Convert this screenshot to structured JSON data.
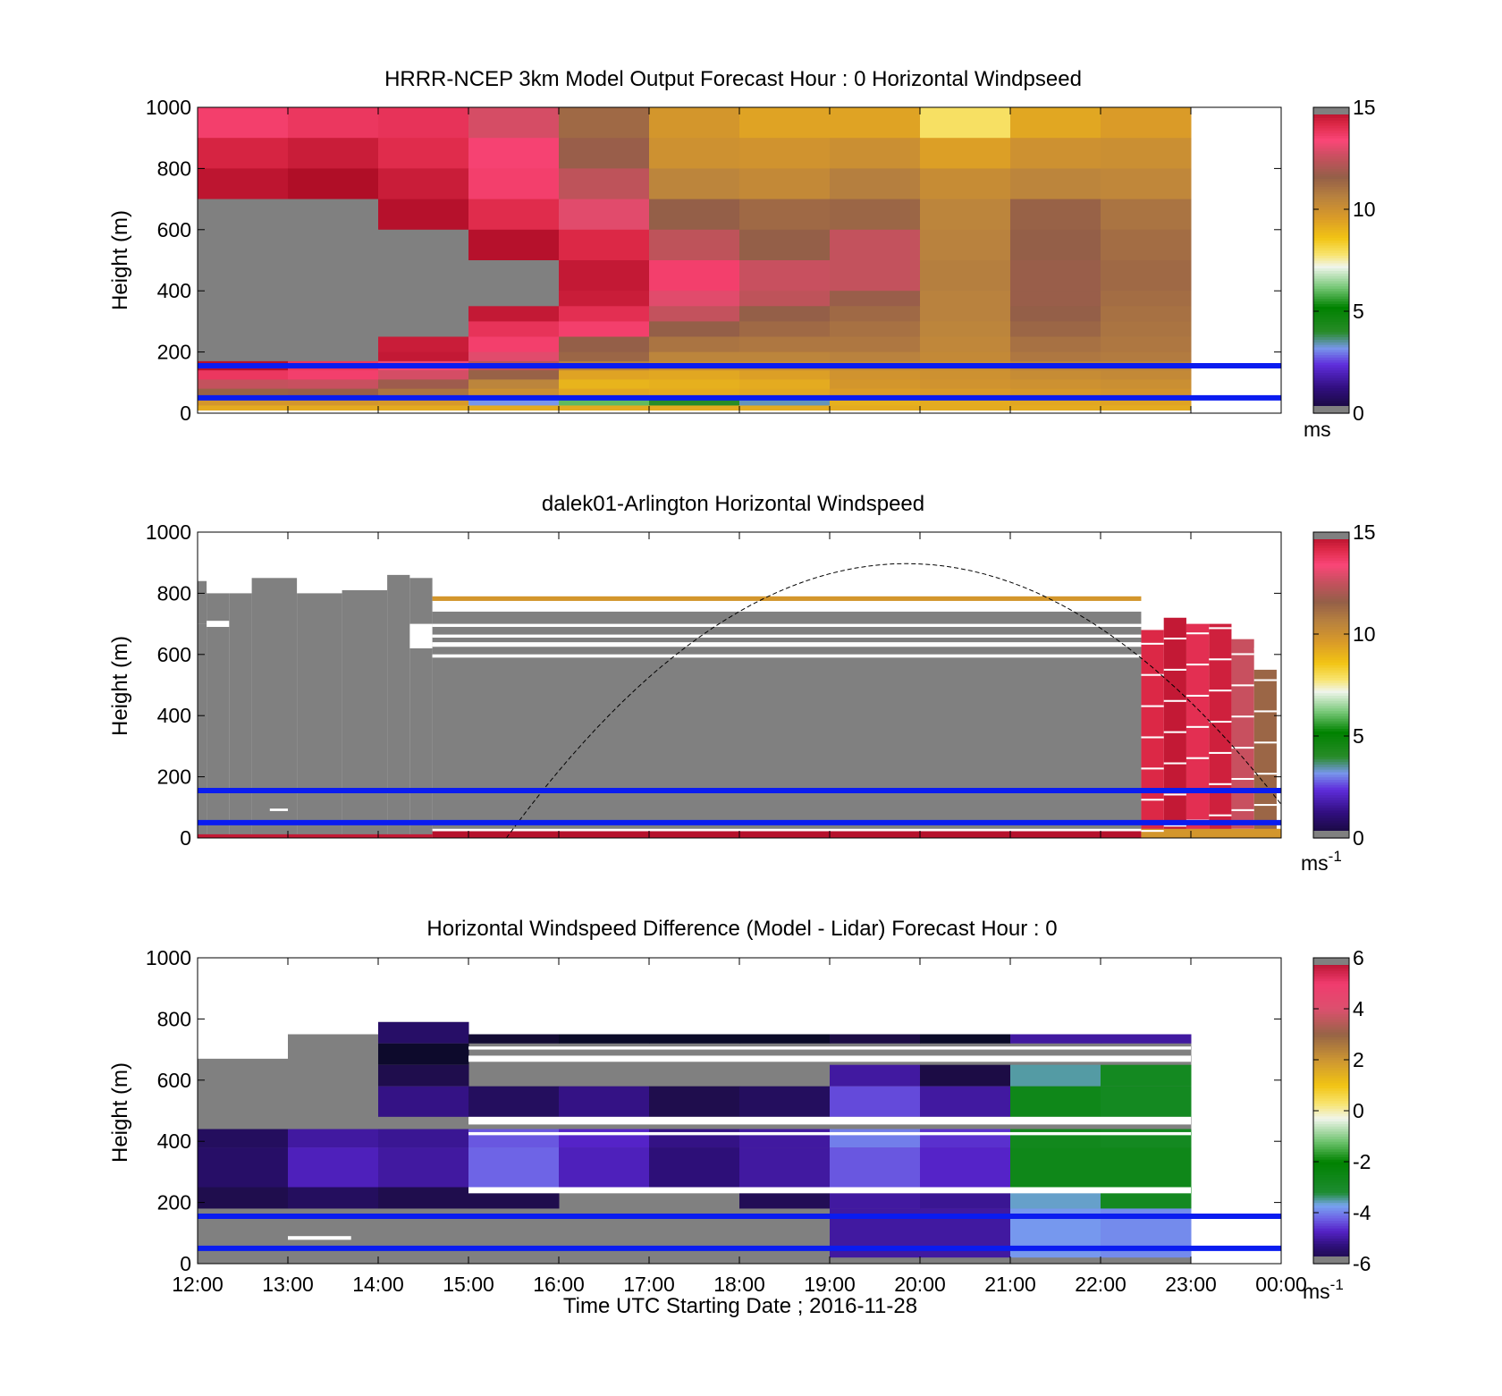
{
  "chart_data": [
    {
      "type": "heatmap",
      "title": "HRRR-NCEP 3km Model Output   Forecast Hour : 0 Horizontal Windpseed",
      "ylabel": "Height (m)",
      "xlabel": "",
      "ylim": [
        0,
        1000
      ],
      "xlim_hours": [
        12,
        24
      ],
      "yticks": [
        "0",
        "200",
        "400",
        "600",
        "800",
        "1000"
      ],
      "colorbar": {
        "min": 0,
        "max": 15,
        "ticks": [
          "0",
          "5",
          "10",
          "15"
        ],
        "unit": "ms",
        "unit_sup": ""
      },
      "reference_lines_m": [
        50,
        155
      ],
      "columns_start_hour": [
        12,
        13,
        14,
        15,
        16,
        17,
        18,
        19,
        20,
        21,
        22
      ],
      "column_width_hours": 1,
      "bands": [
        {
          "from": 900,
          "to": 1000,
          "values": [
            13.6,
            13.8,
            13.9,
            12.8,
            11.3,
            9.8,
            9.4,
            9.4,
            7.9,
            9.3,
            9.6
          ]
        },
        {
          "from": 800,
          "to": 900,
          "values": [
            14.3,
            14.5,
            14.1,
            13.5,
            11.7,
            10.0,
            9.9,
            10.1,
            9.5,
            10.0,
            10.1
          ]
        },
        {
          "from": 700,
          "to": 800,
          "values": [
            14.7,
            14.9,
            14.5,
            13.6,
            12.4,
            10.5,
            10.3,
            10.7,
            10.2,
            10.5,
            10.4
          ]
        },
        {
          "from": 600,
          "to": 700,
          "values": [
            15.5,
            15.5,
            14.8,
            14.1,
            13.0,
            11.6,
            11.3,
            11.4,
            10.5,
            11.5,
            11.0
          ]
        },
        {
          "from": 500,
          "to": 600,
          "values": [
            15.5,
            15.5,
            15.5,
            14.8,
            14.2,
            12.4,
            11.6,
            12.5,
            10.6,
            11.6,
            11.2
          ]
        },
        {
          "from": 400,
          "to": 500,
          "values": [
            15.5,
            15.5,
            15.5,
            15.5,
            14.6,
            13.6,
            12.6,
            12.5,
            10.7,
            11.7,
            11.3
          ]
        },
        {
          "from": 350,
          "to": 400,
          "values": [
            15.5,
            15.5,
            15.5,
            15.5,
            14.5,
            13.0,
            12.4,
            11.7,
            10.6,
            11.7,
            11.2
          ]
        },
        {
          "from": 300,
          "to": 350,
          "values": [
            15.5,
            15.5,
            15.5,
            14.6,
            14.0,
            12.5,
            11.6,
            11.3,
            10.6,
            11.6,
            11.1
          ]
        },
        {
          "from": 250,
          "to": 300,
          "values": [
            15.5,
            15.5,
            15.5,
            13.9,
            13.6,
            11.6,
            11.3,
            11.1,
            10.5,
            11.4,
            11.0
          ]
        },
        {
          "from": 200,
          "to": 250,
          "values": [
            15.5,
            15.5,
            14.5,
            13.6,
            11.6,
            11.0,
            10.9,
            10.9,
            10.4,
            11.1,
            10.9
          ]
        },
        {
          "from": 170,
          "to": 200,
          "values": [
            15.5,
            15.5,
            14.6,
            13.0,
            11.4,
            10.5,
            10.5,
            10.6,
            10.3,
            10.9,
            10.8
          ]
        },
        {
          "from": 140,
          "to": 170,
          "values": [
            14.8,
            13.8,
            13.2,
            12.3,
            10.7,
            10.3,
            10.3,
            10.4,
            10.2,
            10.6,
            10.6
          ]
        },
        {
          "from": 110,
          "to": 140,
          "values": [
            13.8,
            13.6,
            12.8,
            11.5,
            9.4,
            9.3,
            9.5,
            9.9,
            10.0,
            10.2,
            10.3
          ]
        },
        {
          "from": 80,
          "to": 110,
          "values": [
            12.5,
            12.6,
            11.8,
            10.5,
            9.0,
            9.1,
            9.2,
            9.8,
            9.9,
            10.0,
            10.1
          ]
        },
        {
          "from": 50,
          "to": 80,
          "values": [
            11.5,
            11.7,
            11.0,
            10.1,
            9.3,
            9.2,
            9.3,
            9.6,
            9.7,
            9.8,
            9.9
          ]
        },
        {
          "from": 25,
          "to": 50,
          "values": [
            9.8,
            9.8,
            9.7,
            3.2,
            6.0,
            4.0,
            3.4,
            9.1,
            9.2,
            9.3,
            9.4
          ]
        },
        {
          "from": 10,
          "to": 25,
          "values": [
            9.2,
            9.2,
            9.2,
            9.2,
            9.2,
            9.2,
            9.2,
            9.2,
            9.2,
            9.2,
            9.2
          ]
        }
      ]
    },
    {
      "type": "heatmap",
      "title": "dalek01-Arlington  Horizontal Windspeed",
      "ylabel": "Height (m)",
      "xlabel": "",
      "ylim": [
        0,
        1000
      ],
      "xlim_hours": [
        12,
        24
      ],
      "yticks": [
        "0",
        "200",
        "400",
        "600",
        "800",
        "1000"
      ],
      "colorbar": {
        "min": 0,
        "max": 15,
        "ticks": [
          "0",
          "5",
          "10",
          "15"
        ],
        "unit": "ms",
        "unit_sup": "-1"
      },
      "reference_lines_m": [
        50,
        155
      ],
      "solar_curve": {
        "start_hour": 15.42,
        "end_hour": 24.0,
        "end_m": 80,
        "peak_hour": 19.85,
        "peak_m": 897
      },
      "segments": [
        {
          "h0": 12.0,
          "h1": 12.1,
          "from": 0,
          "to": 700,
          "value": 15.5
        },
        {
          "h0": 12.0,
          "h1": 12.1,
          "from": 700,
          "to": 840,
          "value": 15.5
        },
        {
          "h0": 12.1,
          "h1": 12.35,
          "from": 0,
          "to": 690,
          "value": 15.5
        },
        {
          "h0": 12.1,
          "h1": 12.35,
          "from": 710,
          "to": 800,
          "value": 15.5
        },
        {
          "h0": 12.35,
          "h1": 12.6,
          "from": 0,
          "to": 800,
          "value": 15.5
        },
        {
          "h0": 12.6,
          "h1": 13.1,
          "from": 0,
          "to": 850,
          "value": 15.5
        },
        {
          "h0": 13.1,
          "h1": 13.6,
          "from": 0,
          "to": 800,
          "value": 15.5
        },
        {
          "h0": 13.6,
          "h1": 14.1,
          "from": 0,
          "to": 810,
          "value": 15.5
        },
        {
          "h0": 14.1,
          "h1": 14.35,
          "from": 0,
          "to": 860,
          "value": 15.5
        },
        {
          "h0": 14.35,
          "h1": 14.6,
          "from": 0,
          "to": 620,
          "value": 15.5
        },
        {
          "h0": 14.35,
          "h1": 14.6,
          "from": 700,
          "to": 850,
          "value": 15.5
        },
        {
          "h0": 14.6,
          "h1": 22.45,
          "from": 600,
          "to": 740,
          "value": 15.5
        },
        {
          "h0": 14.6,
          "h1": 22.45,
          "from": 30,
          "to": 590,
          "value": 15.5
        },
        {
          "h0": 14.6,
          "h1": 22.45,
          "from": 775,
          "to": 790,
          "value": 9.8
        },
        {
          "h0": 14.6,
          "h1": 22.45,
          "from": 0,
          "to": 22,
          "value": 14.8
        },
        {
          "h0": 12.0,
          "h1": 14.6,
          "from": 0,
          "to": 12,
          "value": 14.6
        },
        {
          "h0": 12.8,
          "h1": 13.0,
          "from": 88,
          "to": 96,
          "value": -1
        },
        {
          "h0": 22.45,
          "h1": 22.7,
          "from": 0,
          "to": 680,
          "value": 14.2
        },
        {
          "h0": 22.7,
          "h1": 22.95,
          "from": 0,
          "to": 720,
          "value": 14.6
        },
        {
          "h0": 22.95,
          "h1": 23.2,
          "from": 0,
          "to": 700,
          "value": 14.0
        },
        {
          "h0": 23.2,
          "h1": 23.45,
          "from": 0,
          "to": 700,
          "value": 14.4
        },
        {
          "h0": 23.45,
          "h1": 23.7,
          "from": 30,
          "to": 650,
          "value": 12.6
        },
        {
          "h0": 23.7,
          "h1": 23.95,
          "from": 20,
          "to": 550,
          "value": 11.4
        },
        {
          "h0": 22.45,
          "h1": 24.0,
          "from": 0,
          "to": 30,
          "value": 9.8
        }
      ]
    },
    {
      "type": "heatmap",
      "title": "Horizontal Windspeed Difference (Model - Lidar) Forecast Hour : 0",
      "ylabel": "Height (m)",
      "xlabel": "Time UTC  Starting Date ; 2016-11-28",
      "ylim": [
        0,
        1000
      ],
      "xlim_hours": [
        12,
        24
      ],
      "xticks": [
        "12:00",
        "13:00",
        "14:00",
        "15:00",
        "16:00",
        "17:00",
        "18:00",
        "19:00",
        "20:00",
        "21:00",
        "22:00",
        "23:00",
        "00:00"
      ],
      "yticks": [
        "0",
        "200",
        "400",
        "600",
        "800",
        "1000"
      ],
      "colorbar": {
        "min": -6,
        "max": 6,
        "ticks": [
          "-6",
          "-4",
          "-2",
          "0",
          "2",
          "4",
          "6"
        ],
        "unit": "ms",
        "unit_sup": "-1"
      },
      "reference_lines_m": [
        50,
        155
      ],
      "columns_start_hour": [
        12,
        13,
        14,
        15,
        16,
        17,
        18,
        19,
        20,
        21,
        22
      ],
      "column_top_m": [
        670,
        750,
        790,
        750,
        750,
        750,
        750,
        750,
        750,
        750,
        750
      ],
      "bands": [
        {
          "from": 720,
          "to": 800,
          "values": [
            null,
            null,
            -5.5,
            -6.2,
            -6.5,
            -6.5,
            -6.5,
            -5.9,
            -6.5,
            -5.0,
            -5.0
          ]
        },
        {
          "from": 650,
          "to": 720,
          "values": [
            null,
            null,
            -6.4,
            null,
            null,
            null,
            null,
            null,
            null,
            null,
            null
          ]
        },
        {
          "from": 580,
          "to": 650,
          "values": [
            null,
            null,
            -5.8,
            null,
            null,
            null,
            null,
            -5.0,
            -5.9,
            -3.5,
            -2.8
          ]
        },
        {
          "from": 480,
          "to": 580,
          "values": [
            null,
            null,
            -5.2,
            -5.6,
            -5.2,
            -5.8,
            -5.6,
            -4.4,
            -5.0,
            -2.6,
            -2.8
          ]
        },
        {
          "from": 380,
          "to": 440,
          "values": [
            -5.6,
            -5.0,
            -5.1,
            -4.3,
            -4.7,
            -5.2,
            -5.0,
            -4.0,
            -4.6,
            -2.7,
            -2.8
          ]
        },
        {
          "from": 250,
          "to": 380,
          "values": [
            -5.5,
            -4.8,
            -5.0,
            -4.2,
            -4.8,
            -5.3,
            -5.0,
            -4.3,
            -4.7,
            -2.6,
            -2.6
          ]
        },
        {
          "from": 180,
          "to": 250,
          "values": [
            -5.8,
            -5.6,
            -5.8,
            -5.8,
            null,
            null,
            -5.7,
            -5.0,
            -5.1,
            -3.6,
            -2.8
          ]
        },
        {
          "from": 20,
          "to": 180,
          "values": [
            null,
            null,
            null,
            null,
            null,
            null,
            null,
            -5.0,
            -5.0,
            -3.8,
            -3.9
          ]
        }
      ]
    }
  ]
}
